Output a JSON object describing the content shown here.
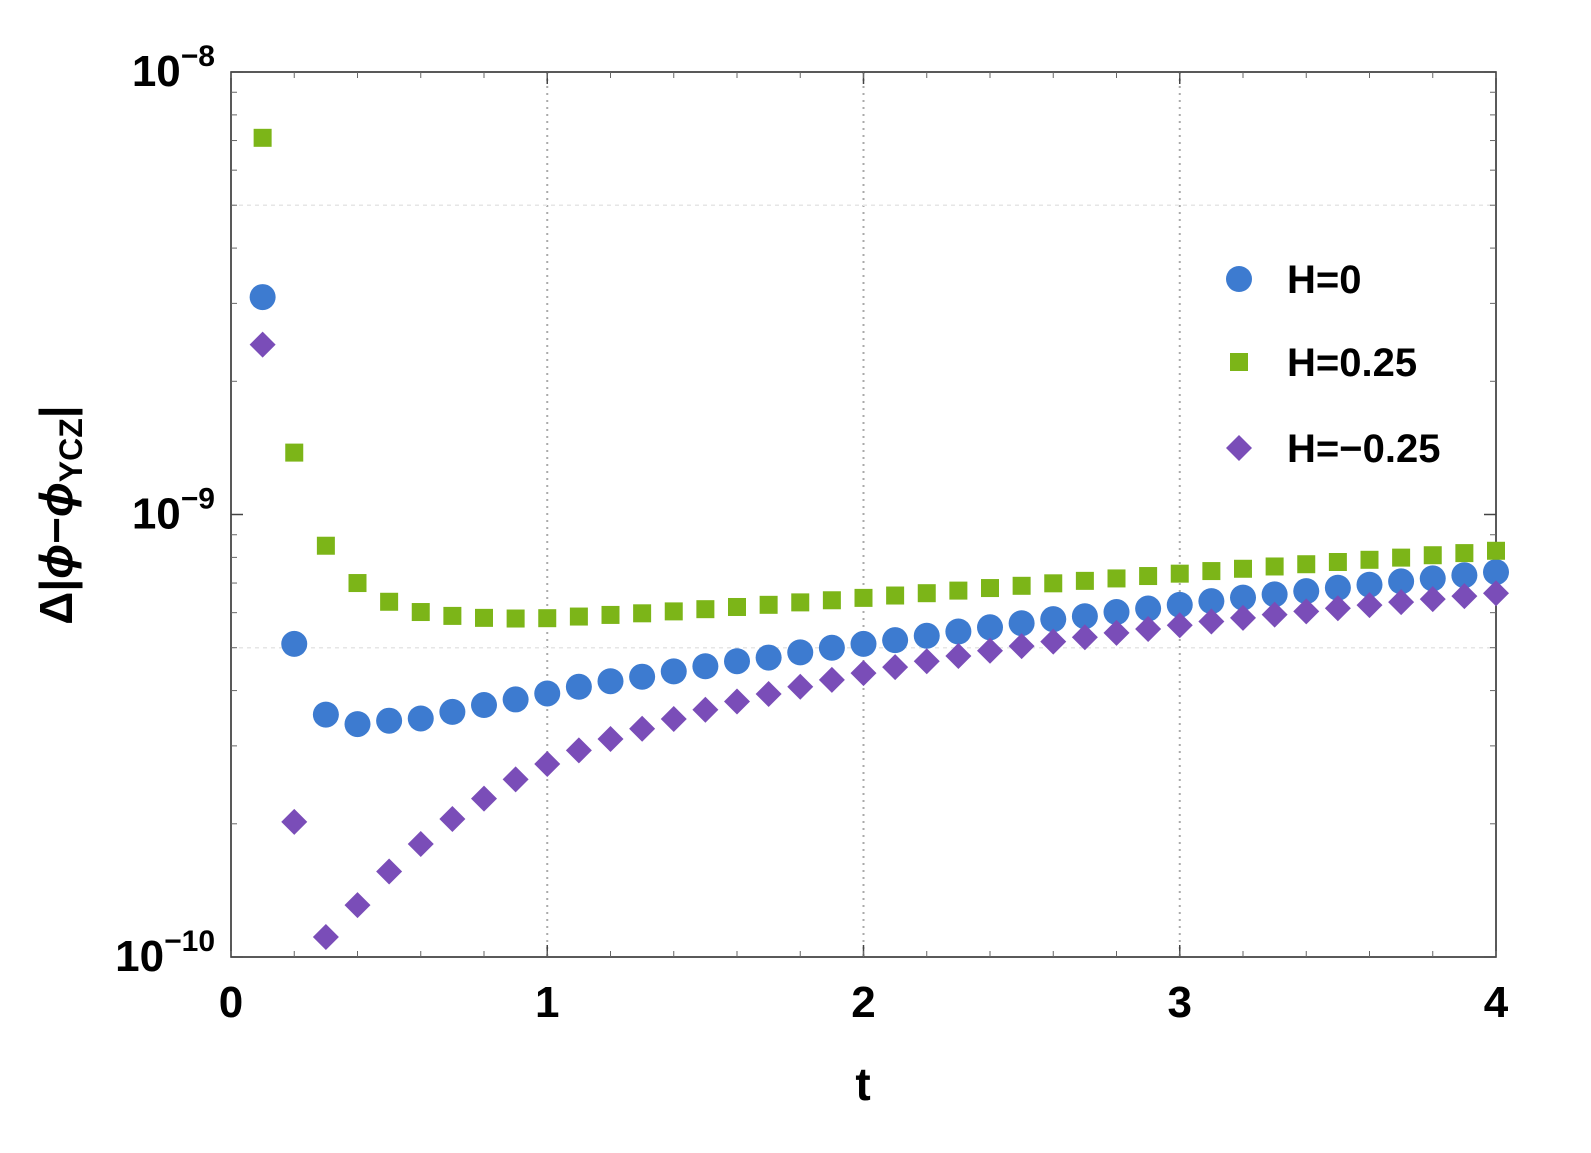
{
  "chart_data": {
    "type": "scatter",
    "xlabel": "t",
    "ylabel": {
      "prefix": "Δ|",
      "phi1": "ϕ",
      "minus": "−",
      "phi2": "ϕ",
      "sub": "YCZ",
      "suffix": "|"
    },
    "xlim": [
      0,
      4
    ],
    "ylim": [
      1e-10,
      1e-08
    ],
    "yscale": "log",
    "x_ticks": [
      {
        "value": 0,
        "label": "0"
      },
      {
        "value": 1,
        "label": "1"
      },
      {
        "value": 2,
        "label": "2"
      },
      {
        "value": 3,
        "label": "3"
      },
      {
        "value": 4,
        "label": "4"
      }
    ],
    "y_ticks": [
      {
        "value": 1e-08,
        "base": "10",
        "exp": "−8"
      },
      {
        "value": 1e-09,
        "base": "10",
        "exp": "−9"
      },
      {
        "value": 1e-10,
        "base": "10",
        "exp": "−10"
      }
    ],
    "grid": "vertical dotted at major x ticks",
    "legend_position": "right",
    "series": [
      {
        "name": "H=0",
        "marker": "circle",
        "color": "#3d7bd0",
        "points": [
          [
            0.1,
            3.1e-09
          ],
          [
            0.2,
            5.1e-10
          ],
          [
            0.3,
            3.53e-10
          ],
          [
            0.4,
            3.36e-10
          ],
          [
            0.5,
            3.42e-10
          ],
          [
            0.6,
            3.46e-10
          ],
          [
            0.7,
            3.58e-10
          ],
          [
            0.8,
            3.71e-10
          ],
          [
            0.9,
            3.82e-10
          ],
          [
            1.0,
            3.94e-10
          ],
          [
            1.1,
            4.08e-10
          ],
          [
            1.2,
            4.2e-10
          ],
          [
            1.3,
            4.3e-10
          ],
          [
            1.4,
            4.42e-10
          ],
          [
            1.5,
            4.54e-10
          ],
          [
            1.6,
            4.66e-10
          ],
          [
            1.7,
            4.75e-10
          ],
          [
            1.8,
            4.88e-10
          ],
          [
            1.9,
            5e-10
          ],
          [
            2.0,
            5.1e-10
          ],
          [
            2.1,
            5.2e-10
          ],
          [
            2.2,
            5.32e-10
          ],
          [
            2.3,
            5.44e-10
          ],
          [
            2.4,
            5.56e-10
          ],
          [
            2.5,
            5.68e-10
          ],
          [
            2.6,
            5.8e-10
          ],
          [
            2.7,
            5.89e-10
          ],
          [
            2.8,
            6.02e-10
          ],
          [
            2.9,
            6.13e-10
          ],
          [
            3.0,
            6.25e-10
          ],
          [
            3.1,
            6.37e-10
          ],
          [
            3.2,
            6.49e-10
          ],
          [
            3.3,
            6.6e-10
          ],
          [
            3.4,
            6.71e-10
          ],
          [
            3.5,
            6.83e-10
          ],
          [
            3.6,
            6.94e-10
          ],
          [
            3.7,
            7.06e-10
          ],
          [
            3.8,
            7.17e-10
          ],
          [
            3.9,
            7.29e-10
          ],
          [
            4.0,
            7.41e-10
          ]
        ]
      },
      {
        "name": "H=0.25",
        "marker": "square",
        "color": "#7cb518",
        "points": [
          [
            0.1,
            7.1e-09
          ],
          [
            0.2,
            1.38e-09
          ],
          [
            0.3,
            8.5e-10
          ],
          [
            0.4,
            7e-10
          ],
          [
            0.5,
            6.35e-10
          ],
          [
            0.6,
            6.02e-10
          ],
          [
            0.7,
            5.9e-10
          ],
          [
            0.8,
            5.84e-10
          ],
          [
            0.9,
            5.82e-10
          ],
          [
            1.0,
            5.83e-10
          ],
          [
            1.1,
            5.88e-10
          ],
          [
            1.2,
            5.93e-10
          ],
          [
            1.3,
            5.98e-10
          ],
          [
            1.4,
            6.04e-10
          ],
          [
            1.5,
            6.11e-10
          ],
          [
            1.6,
            6.18e-10
          ],
          [
            1.7,
            6.25e-10
          ],
          [
            1.8,
            6.33e-10
          ],
          [
            1.9,
            6.4e-10
          ],
          [
            2.0,
            6.48e-10
          ],
          [
            2.1,
            6.56e-10
          ],
          [
            2.2,
            6.64e-10
          ],
          [
            2.3,
            6.73e-10
          ],
          [
            2.4,
            6.82e-10
          ],
          [
            2.5,
            6.9e-10
          ],
          [
            2.6,
            6.99e-10
          ],
          [
            2.7,
            7.08e-10
          ],
          [
            2.8,
            7.17e-10
          ],
          [
            2.9,
            7.26e-10
          ],
          [
            3.0,
            7.35e-10
          ],
          [
            3.1,
            7.45e-10
          ],
          [
            3.2,
            7.54e-10
          ],
          [
            3.3,
            7.63e-10
          ],
          [
            3.4,
            7.72e-10
          ],
          [
            3.5,
            7.81e-10
          ],
          [
            3.6,
            7.9e-10
          ],
          [
            3.7,
            7.99e-10
          ],
          [
            3.8,
            8.09e-10
          ],
          [
            3.9,
            8.18e-10
          ],
          [
            4.0,
            8.28e-10
          ]
        ]
      },
      {
        "name": "H=−0.25",
        "marker": "diamond",
        "color": "#7a4db8",
        "points": [
          [
            0.1,
            2.42e-09
          ],
          [
            0.2,
            2.02e-10
          ],
          [
            0.3,
            1.11e-10
          ],
          [
            0.4,
            1.31e-10
          ],
          [
            0.5,
            1.56e-10
          ],
          [
            0.6,
            1.8e-10
          ],
          [
            0.7,
            2.05e-10
          ],
          [
            0.8,
            2.28e-10
          ],
          [
            0.9,
            2.52e-10
          ],
          [
            1.0,
            2.73e-10
          ],
          [
            1.1,
            2.93e-10
          ],
          [
            1.2,
            3.11e-10
          ],
          [
            1.3,
            3.28e-10
          ],
          [
            1.4,
            3.45e-10
          ],
          [
            1.5,
            3.62e-10
          ],
          [
            1.6,
            3.78e-10
          ],
          [
            1.7,
            3.93e-10
          ],
          [
            1.8,
            4.08e-10
          ],
          [
            1.9,
            4.23e-10
          ],
          [
            2.0,
            4.38e-10
          ],
          [
            2.1,
            4.52e-10
          ],
          [
            2.2,
            4.66e-10
          ],
          [
            2.3,
            4.79e-10
          ],
          [
            2.4,
            4.92e-10
          ],
          [
            2.5,
            5.04e-10
          ],
          [
            2.6,
            5.16e-10
          ],
          [
            2.7,
            5.28e-10
          ],
          [
            2.8,
            5.4e-10
          ],
          [
            2.9,
            5.51e-10
          ],
          [
            3.0,
            5.62e-10
          ],
          [
            3.1,
            5.73e-10
          ],
          [
            3.2,
            5.84e-10
          ],
          [
            3.3,
            5.94e-10
          ],
          [
            3.4,
            6.04e-10
          ],
          [
            3.5,
            6.14e-10
          ],
          [
            3.6,
            6.24e-10
          ],
          [
            3.7,
            6.34e-10
          ],
          [
            3.8,
            6.44e-10
          ],
          [
            3.9,
            6.54e-10
          ],
          [
            4.0,
            6.64e-10
          ]
        ]
      }
    ]
  }
}
